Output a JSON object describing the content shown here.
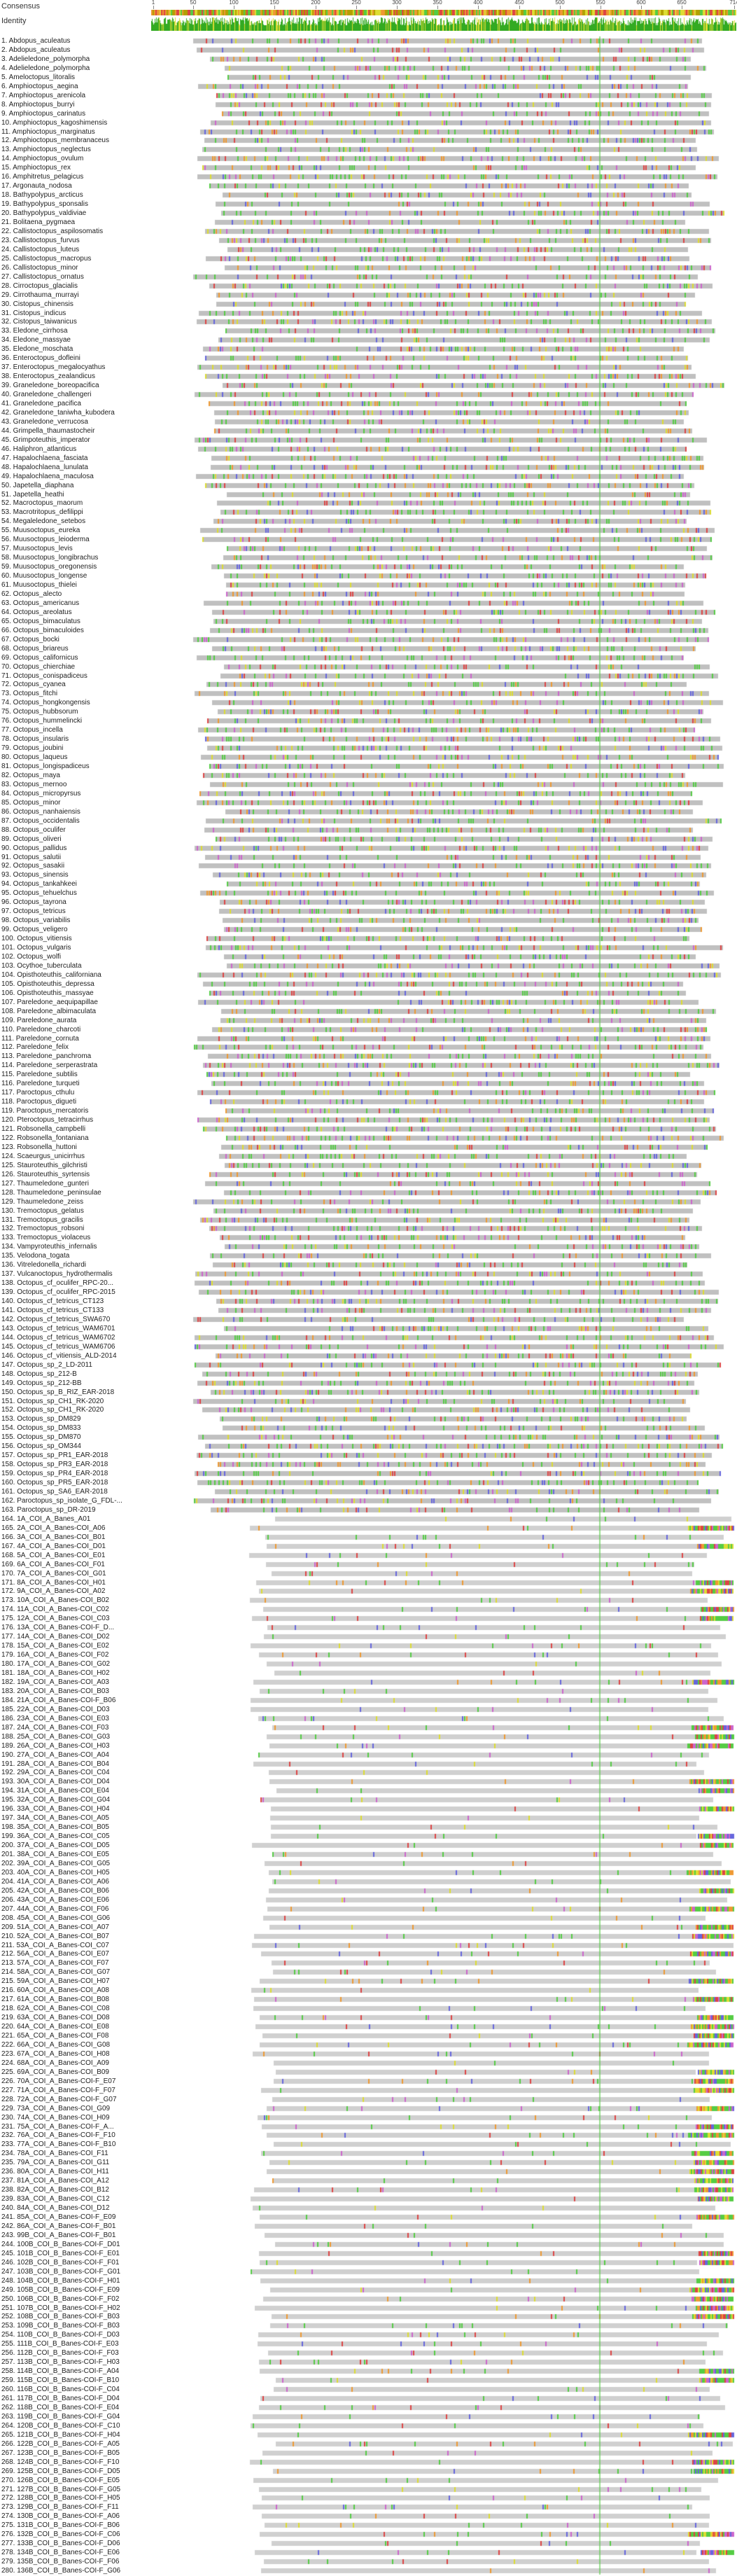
{
  "header": {
    "consensus_label": "Consensus",
    "identity_label": "Identity"
  },
  "ruler": {
    "ticks": [
      "1",
      "50",
      "100",
      "150",
      "200",
      "250",
      "300",
      "350",
      "400",
      "450",
      "500",
      "550",
      "600",
      "650",
      "714"
    ],
    "max": 714
  },
  "colors": {
    "background": "#ffffff",
    "gap": "#d0d0d0",
    "identical": "#c0c0c0",
    "residue_green": "#55cc44",
    "residue_yellow": "#dddd33",
    "residue_blue": "#6666dd",
    "residue_red": "#dd4444",
    "residue_purple": "#cc66cc",
    "residue_orange": "#ee9933",
    "consensus_dark": "#b3a000",
    "identity_green": "#33aa22"
  },
  "sequences": [
    "1. Abdopus_aculeatus",
    "2. Abdopus_aculeatus",
    "3. Adelieledone_polymorpha",
    "4. Adelieledone_polymorpha",
    "5. Ameloctopus_litoralis",
    "6. Amphioctopus_aegina",
    "7. Amphioctopus_arenicola",
    "8. Amphioctopus_burryi",
    "9. Amphioctopus_carinatus",
    "10. Amphioctopus_kagoshimensis",
    "11. Amphioctopus_marginatus",
    "12. Amphioctopus_membranaceus",
    "13. Amphioctopus_neglectus",
    "14. Amphioctopus_ovulum",
    "15. Amphioctopus_rex",
    "16. Amphitretus_pelagicus",
    "17. Argonauta_nodosa",
    "18. Bathypolypus_arcticus",
    "19. Bathypolypus_sponsalis",
    "20. Bathypolypus_valdiviae",
    "21. Bolitaena_pygmaea",
    "22. Callistoctopus_aspilosomatis",
    "23. Callistoctopus_furvus",
    "24. Callistoctopus_luteus",
    "25. Callistoctopus_macropus",
    "26. Callistoctopus_minor",
    "27. Callistoctopus_ornatus",
    "28. Cirroctopus_glacialis",
    "29. Cirrothauma_murrayi",
    "30. Cistopus_chinensis",
    "31. Cistopus_indicus",
    "32. Cistopus_taiwanicus",
    "33. Eledone_cirrhosa",
    "34. Eledone_massyae",
    "35. Eledone_moschata",
    "36. Enteroctopus_dofleini",
    "37. Enteroctopus_megalocyathus",
    "38. Enteroctopus_zealandicus",
    "39. Graneledone_boreopacifica",
    "40. Graneledone_challengeri",
    "41. Graneledone_pacifica",
    "42. Graneledone_taniwha_kubodera",
    "43. Graneledone_verrucosa",
    "44. Grimpella_thaumastocheir",
    "45. Grimpoteuthis_imperator",
    "46. Haliphron_atlanticus",
    "47. Hapalochlaena_fasciata",
    "48. Hapalochlaena_lunulata",
    "49. Hapalochlaena_maculosa",
    "50. Japetella_diaphana",
    "51. Japetella_heathi",
    "52. Macroctopus_maorum",
    "53. Macrotritopus_defilippi",
    "54. Megaleledone_setebos",
    "55. Muusoctopus_eureka",
    "56. Muusoctopus_leioderma",
    "57. Muusoctopus_levis",
    "58. Muusoctopus_longibrachus",
    "59. Muusoctopus_oregonensis",
    "60. Muusoctopus_longense",
    "61. Muusoctopus_thielei",
    "62. Octopus_alecto",
    "63. Octopus_americanus",
    "64. Octopus_areolatus",
    "65. Octopus_bimaculatus",
    "66. Octopus_bimaculoides",
    "67. Octopus_bocki",
    "68. Octopus_briareus",
    "69. Octopus_californicus",
    "70. Octopus_chierchiae",
    "71. Octopus_conispadiceus",
    "72. Octopus_cyanea",
    "73. Octopus_fitchi",
    "74. Octopus_hongkongensis",
    "75. Octopus_hubbsorum",
    "76. Octopus_hummelincki",
    "77. Octopus_incella",
    "78. Octopus_insularis",
    "79. Octopus_joubini",
    "80. Octopus_laqueus",
    "81. Octopus_longispadiceus",
    "82. Octopus_maya",
    "83. Octopus_mernoo",
    "84. Octopus_micropyrsus",
    "85. Octopus_minor",
    "86. Octopus_nanhaiensis",
    "87. Octopus_occidentalis",
    "88. Octopus_oculifer",
    "89. Octopus_oliveri",
    "90. Octopus_pallidus",
    "91. Octopus_salutii",
    "92. Octopus_sasakii",
    "93. Octopus_sinensis",
    "94. Octopus_tankahkeei",
    "95. Octopus_tehuelchus",
    "96. Octopus_tayrona",
    "97. Octopus_tetricus",
    "98. Octopus_variabilis",
    "99. Octopus_veligero",
    "100. Octopus_vitiensis",
    "101. Octopus_vulgaris",
    "102. Octopus_wolfi",
    "103. Ocythoe_tuberculata",
    "104. Opisthoteuthis_californiana",
    "105. Opisthoteuthis_depressa",
    "106. Opisthoteuthis_massyae",
    "107. Pareledone_aequipapillae",
    "108. Pareledone_albimaculata",
    "109. Pareledone_aurata",
    "110. Pareledone_charcoti",
    "111. Pareledone_cornuta",
    "112. Pareledone_felix",
    "113. Pareledone_panchroma",
    "114. Pareledone_serperastrata",
    "115. Pareledone_subtilis",
    "116. Pareledone_turqueti",
    "117. Paroctopus_cthulu",
    "118. Paroctopus_digueti",
    "119. Paroctopus_mercatoris",
    "120. Pteroctopus_tetracirrhus",
    "121. Robsonella_campbelli",
    "122. Robsonella_fontaniana",
    "123. Robsonella_huttoni",
    "124. Scaeurgus_unicirrhus",
    "125. Stauroteuthis_gilchristi",
    "126. Stauroteuthis_syrtensis",
    "127. Thaumeledone_gunteri",
    "128. Thaumeledone_peninsulae",
    "129. Thaumeledone_zeiss",
    "130. Tremoctopus_gelatus",
    "131. Tremoctopus_gracilis",
    "132. Tremoctopus_robsoni",
    "133. Tremoctopus_violaceus",
    "134. Vampyroteuthis_infernalis",
    "135. Velodona_togata",
    "136. Vitreledonella_richardi",
    "137. Vulcanoctopus_hydrothermalis",
    "138. Octopus_cf_oculifer_RPC-20...",
    "139. Octopus_cf_oculifer_RPC-2015",
    "140. Octopus_cf_tetricus_CT123",
    "141. Octopus_cf_tetricus_CT133",
    "142. Octopus_cf_tetricus_SWA670",
    "143. Octopus_cf_tetricus_WAM6701",
    "144. Octopus_cf_tetricus_WAM6702",
    "145. Octopus_cf_tetricus_WAM6706",
    "146. Octopus_cf_vitiensis_ALD-2014",
    "147. Octopus_sp_2_LD-2011",
    "148. Octopus_sp_212-B",
    "149. Octopus_sp_212-BB",
    "150. Octopus_sp_B_RIZ_EAR-2018",
    "151. Octopus_sp_CH1_RK-2020",
    "152. Octopus_sp_CH1_RK-2020",
    "153. Octopus_sp_DM829",
    "154. Octopus_sp_DM833",
    "155. Octopus_sp_DM870",
    "156. Octopus_sp_OM344",
    "157. Octopus_sp_PR1_EAR-2018",
    "158. Octopus_sp_PR3_EAR-2018",
    "159. Octopus_sp_PR4_EAR-2018",
    "160. Octopus_sp_PR5_EAR-2018",
    "161. Octopus_sp_SA6_EAR-2018",
    "162. Paroctopus_sp_isolate_G_FDL-...",
    "163. Paroctopus_sp_DR-2019",
    "164. 1A_COI_A_Banes_A01",
    "165. 2A_COI_A_Banes-COI_A06",
    "166. 3A_COI_A_Banes-COI_B01",
    "167. 4A_COI_A_Banes-COI_D01",
    "168. 5A_COI_A_Banes-COI_E01",
    "169. 6A_COI_A_Banes-COI_F01",
    "170. 7A_COI_A_Banes-COI_G01",
    "171. 8A_COI_A_Banes-COI_H01",
    "172. 9A_COI_A_Banes-COI_A02",
    "173. 10A_COI_A_Banes-COI_B02",
    "174. 11A_COI_A_Banes-COI_C02",
    "175. 12A_COI_A_Banes-COI_C03",
    "176. 13A_COI_A_Banes-COI-F_D...",
    "177. 14A_COI_A_Banes-COI_D02",
    "178. 15A_COI_A_Banes-COI_E02",
    "179. 16A_COI_A_Banes-COI_F02",
    "180. 17A_COI_A_Banes-COI_G02",
    "181. 18A_COI_A_Banes-COI_H02",
    "182. 19A_COI_A_Banes-COI_A03",
    "183. 20A_COI_A_Banes-COI_B03",
    "184. 21A_COI_A_Banes-COI-F_B06",
    "185. 22A_COI_A_Banes-COI_D03",
    "186. 23A_COI_A_Banes-COI_E03",
    "187. 24A_COI_A_Banes-COI_F03",
    "188. 25A_COI_A_Banes-COI_G03",
    "189. 26A_COI_A_Banes-COI_H03",
    "190. 27A_COI_A_Banes-COI_A04",
    "191. 28A_COI_A_Banes-COI_B04",
    "192. 29A_COI_A_Banes-COI_C04",
    "193. 30A_COI_A_Banes-COI_D04",
    "194. 31A_COI_A_Banes-COI_E04",
    "195. 32A_COI_A_Banes-COI_G04",
    "196. 33A_COI_A_Banes-COI_H04",
    "197. 34A_COI_A_Banes-COI_A05",
    "198. 35A_COI_A_Banes-COI_B05",
    "199. 36A_COI_A_Banes-COI_C05",
    "200. 37A_COI_A_Banes-COI_D05",
    "201. 38A_COI_A_Banes-COI_E05",
    "202. 39A_COI_A_Banes-COI_G05",
    "203. 40A_COI_A_Banes-COI_H05",
    "204. 41A_COI_A_Banes-COI_A06",
    "205. 42A_COI_A_Banes-COI_B06",
    "206. 43A_COI_A_Banes-COI_E06",
    "207. 44A_COI_A_Banes-COI_F06",
    "208. 45A_COI_A_Banes-COI_G06",
    "209. 51A_COI_A_Banes-COI_A07",
    "210. 52A_COI_A_Banes-COI_B07",
    "211. 53A_COI_A_Banes-COI_C07",
    "212. 56A_COI_A_Banes-COI_E07",
    "213. 57A_COI_A_Banes-COI_F07",
    "214. 58A_COI_A_Banes-COI_G07",
    "215. 59A_COI_A_Banes-COI_H07",
    "216. 60A_COI_A_Banes-COI_A08",
    "217. 61A_COI_A_Banes-COI_B08",
    "218. 62A_COI_A_Banes-COI_C08",
    "219. 63A_COI_A_Banes-COI_D08",
    "220. 64A_COI_A_Banes-COI_E08",
    "221. 65A_COI_A_Banes-COI_F08",
    "222. 66A_COI_A_Banes-COI_G08",
    "223. 67A_COI_A_Banes-COI_H08",
    "224. 68A_COI_A_Banes-COI_A09",
    "225. 69A_COI_A_Banes-COI_B09",
    "226. 70A_COI_A_Banes-COI-F_E07",
    "227. 71A_COI_A_Banes-COI-F_F07",
    "228. 72A_COI_A_Banes-COI-F_G07",
    "229. 73A_COI_A_Banes-COI_G09",
    "230. 74A_COI_A_Banes-COI_H09",
    "231. 75A_COI_A_Banes-COI-F_A...",
    "232. 76A_COI_A_Banes-COI-F_F10",
    "233. 77A_COI_A_Banes-COI-F_B10",
    "234. 78A_COI_A_Banes-COI_F11",
    "235. 79A_COI_A_Banes-COI_G11",
    "236. 80A_COI_A_Banes-COI_H11",
    "237. 81A_COI_A_Banes-COI_A12",
    "238. 82A_COI_A_Banes-COI_B12",
    "239. 83A_COI_A_Banes-COI_C12",
    "240. 84A_COI_A_Banes-COI_D12",
    "241. 85A_COI_A_Banes-COI-F_E09",
    "242. 86A_COI_A_Banes-COI-F_B01",
    "243. 99B_COI_A_Banes-COI-F_B01",
    "244. 100B_COI_B_Banes-COI-F_D01",
    "245. 101B_COI_B_Banes-COI-F_E01",
    "246. 102B_COI_B_Banes-COI-F_F01",
    "247. 103B_COI_B_Banes-COI-F_G01",
    "248. 104B_COI_B_Banes-COI-F_H01",
    "249. 105B_COI_B_Banes-COI-F_E09",
    "250. 106B_COI_B_Banes-COI-F_F02",
    "251. 107B_COI_B_Banes-COI-F_H02",
    "252. 108B_COI_B_Banes-COI-F_B03",
    "253. 109B_COI_B_Banes-COI-F_B03",
    "254. 110B_COI_B_Banes-COI-F_D03",
    "255. 111B_COI_B_Banes-COI-F_E03",
    "256. 112B_COI_B_Banes-COI-F_F03",
    "257. 113B_COI_B_Banes-COI-F_H03",
    "258. 114B_COI_B_Banes-COI-F_A04",
    "259. 115B_COI_B_Banes-COI-F_B10",
    "260. 116B_COI_B_Banes-COI-F_C04",
    "261. 117B_COI_B_Banes-COI-F_D04",
    "262. 118B_COI_B_Banes-COI-F_E04",
    "263. 119B_COI_B_Banes-COI-F_G04",
    "264. 120B_COI_B_Banes-COI-F_C10",
    "265. 121B_COI_B_Banes-COI-F_H04",
    "266. 122B_COI_B_Banes-COI-F_A05",
    "267. 123B_COI_B_Banes-COI-F_B05",
    "268. 124B_COI_B_Banes-COI-F_F10",
    "269. 125B_COI_B_Banes-COI-F_D05",
    "270. 126B_COI_B_Banes-COI-F_E05",
    "271. 127B_COI_B_Banes-COI-F_G05",
    "272. 128B_COI_B_Banes-COI-F_H05",
    "273. 129B_COI_B_Banes-COI-F_F11",
    "274. 130B_COI_B_Banes-COI-F_A06",
    "275. 131B_COI_B_Banes-COI-F_B06",
    "276. 132B_COI_B_Banes-COI-F_C06",
    "277. 133B_COI_B_Banes-COI-F_D06",
    "278. 134B_COI_B_Banes-COI-F_E06",
    "279. 135B_COI_B_Banes-COI-F_F06",
    "280. 136B_COI_B_Banes-COI-F_G06"
  ]
}
